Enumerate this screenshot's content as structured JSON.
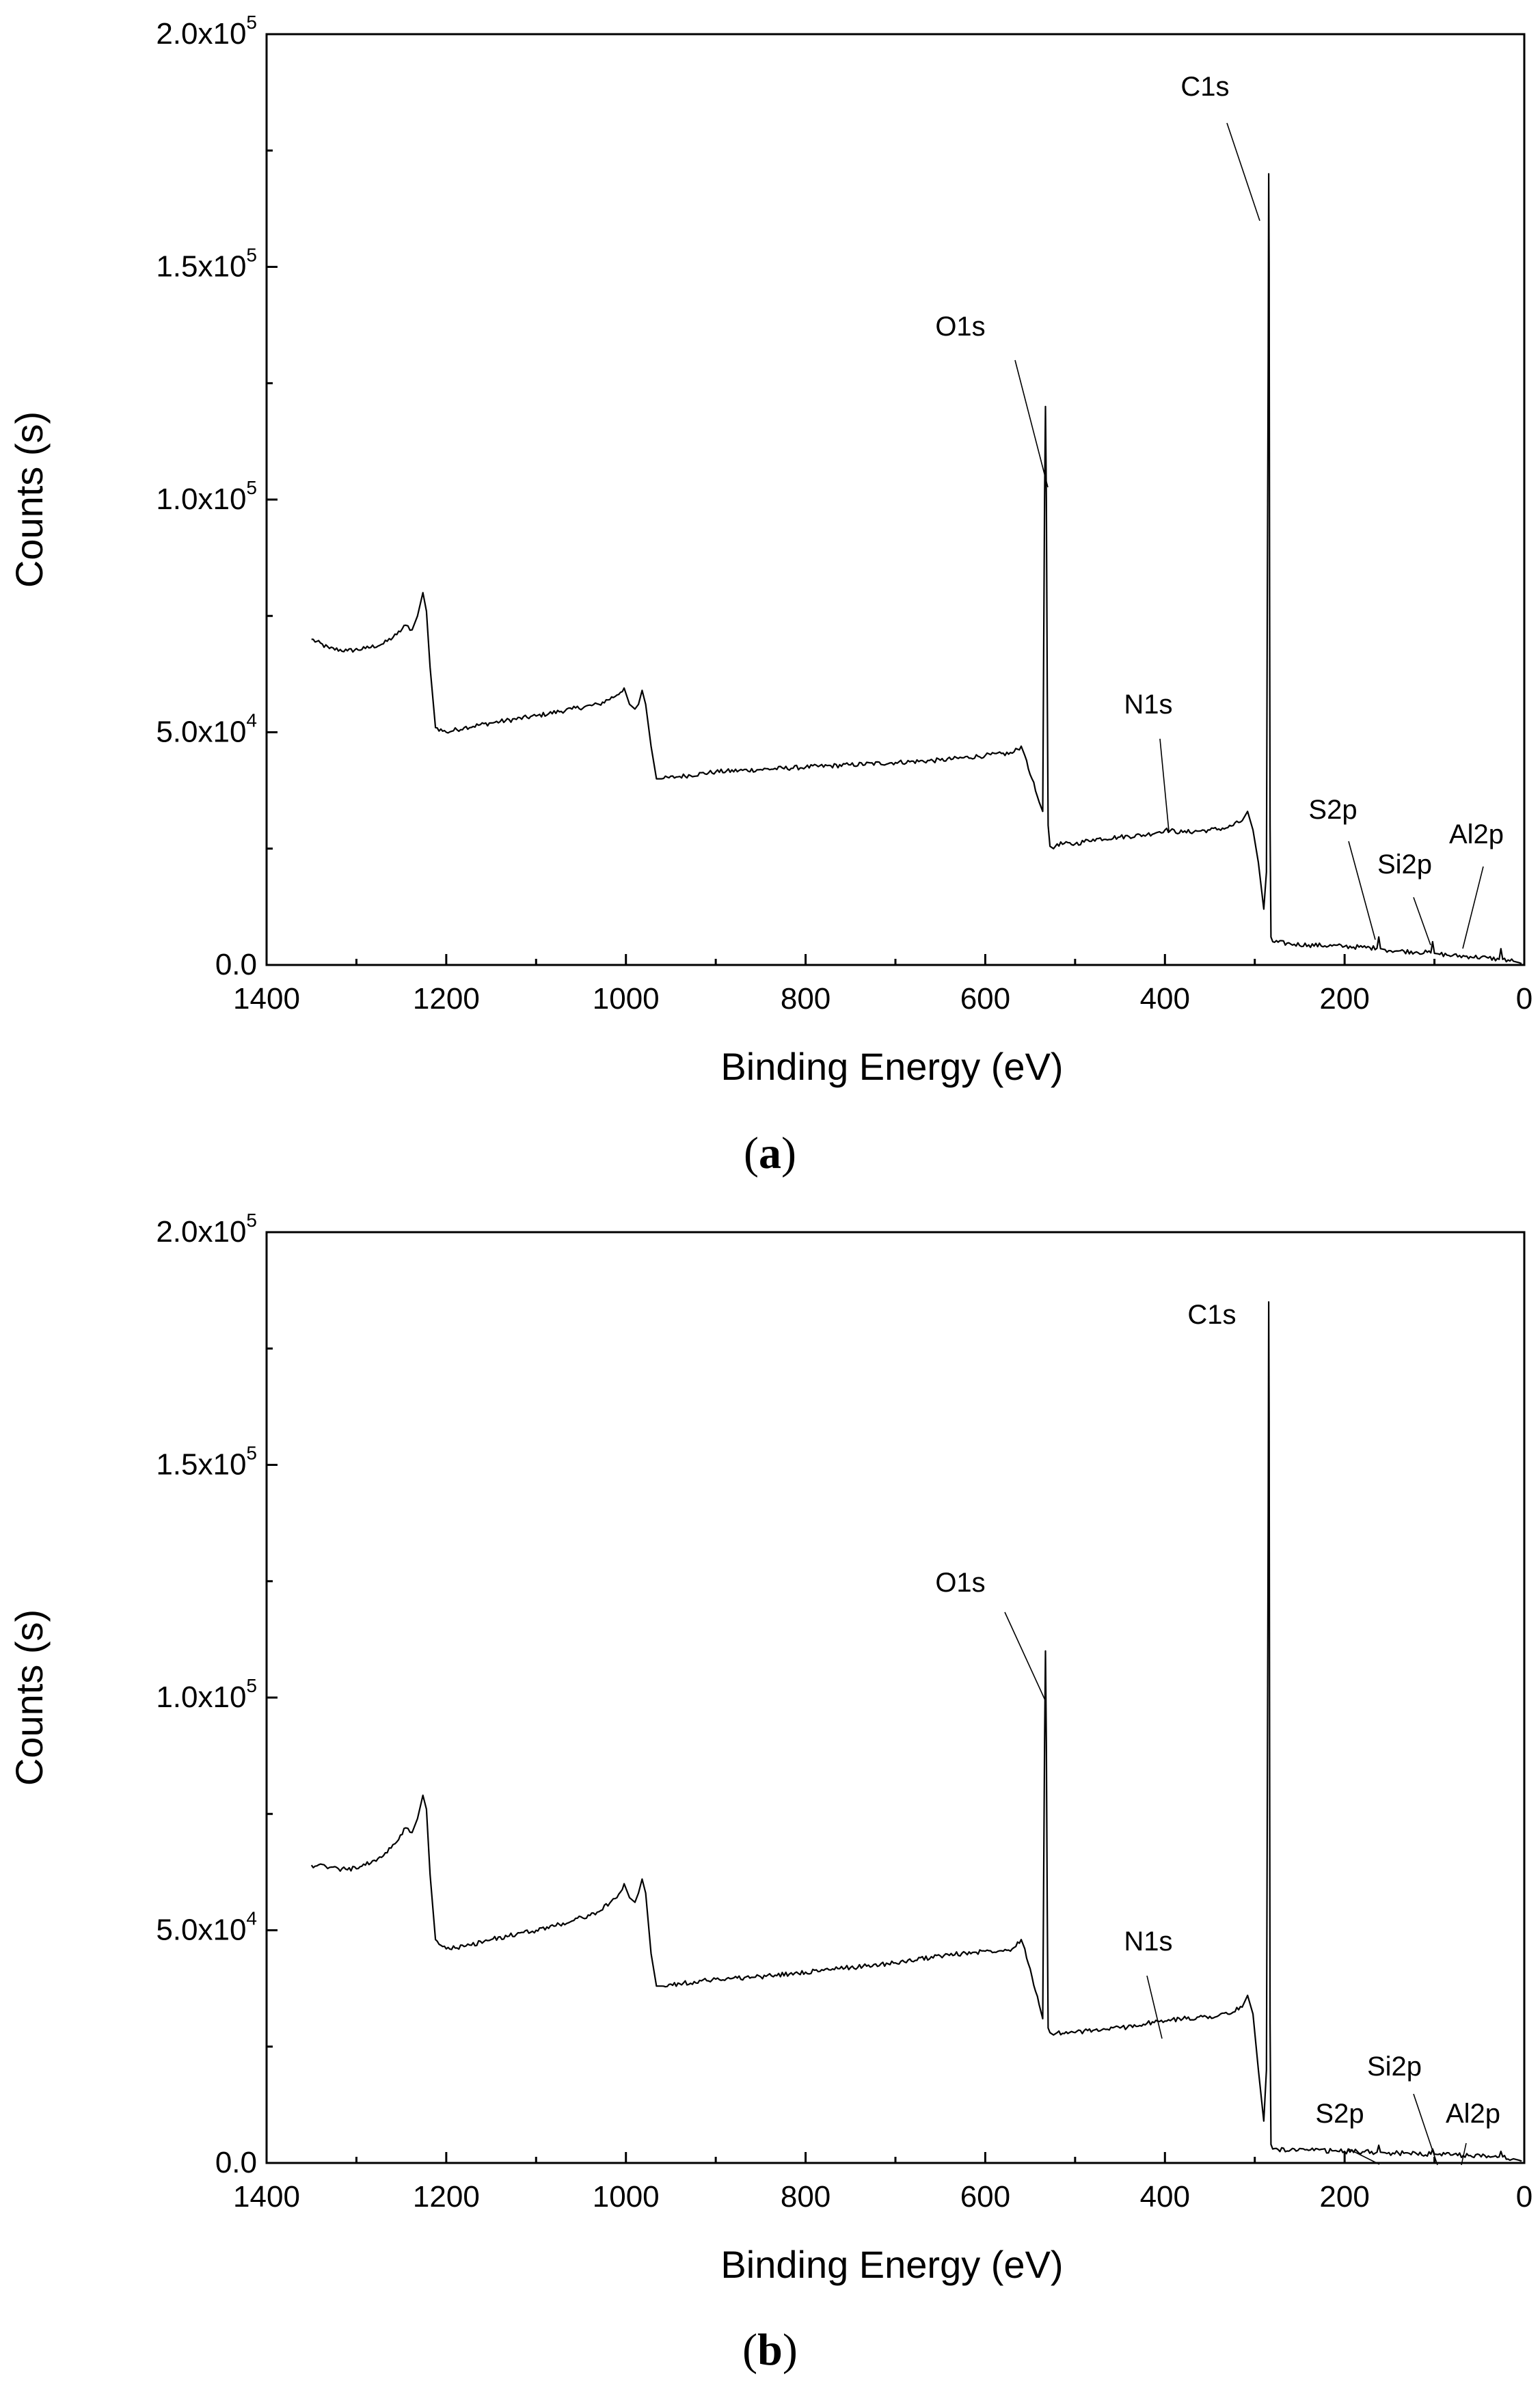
{
  "chart_data": [
    {
      "type": "line",
      "panel_label": "a",
      "xlabel": "Binding Energy (eV)",
      "ylabel": "Counts (s)",
      "xlim": [
        1400,
        0
      ],
      "ylim": [
        0,
        200000
      ],
      "x_reversed": true,
      "xticks": [
        "1400",
        "1200",
        "1000",
        "800",
        "600",
        "400",
        "200",
        "0"
      ],
      "yticks": [
        {
          "mantissa": "0.0",
          "exp": ""
        },
        {
          "mantissa": "5.0x10",
          "exp": "4"
        },
        {
          "mantissa": "1.0x10",
          "exp": "5"
        },
        {
          "mantissa": "1.5x10",
          "exp": "5"
        },
        {
          "mantissa": "2.0x10",
          "exp": "5"
        }
      ],
      "grid": false,
      "series": [
        {
          "x": [
            1350,
            1330,
            1310,
            1290,
            1270,
            1255,
            1245,
            1238,
            1232,
            1226,
            1222,
            1218,
            1212,
            1200,
            1180,
            1150,
            1100,
            1060,
            1030,
            1010,
            1002,
            996,
            990,
            986,
            982,
            978,
            972,
            966,
            960,
            940,
            900,
            850,
            800,
            750,
            700,
            650,
            600,
            570,
            560,
            556,
            548,
            540,
            536,
            534,
            533,
            532,
            531,
            530,
            528,
            524,
            520,
            500,
            480,
            450,
            420,
            400,
            380,
            350,
            330,
            314,
            308,
            302,
            296,
            290,
            287,
            286,
            285,
            284.5,
            284,
            283.5,
            283,
            282,
            280,
            260,
            240,
            200,
            180,
            164,
            162,
            160,
            155,
            140,
            120,
            104,
            102,
            100,
            96,
            80,
            60,
            40,
            28,
            26,
            24,
            12,
            6,
            3
          ],
          "y": [
            70000,
            68000,
            67500,
            68000,
            69000,
            71000,
            73000,
            72000,
            75000,
            80000,
            76000,
            64000,
            51000,
            50000,
            51000,
            52000,
            53500,
            55000,
            56000,
            58000,
            59500,
            56000,
            55000,
            56000,
            59000,
            56000,
            47000,
            40000,
            40000,
            40500,
            41500,
            42000,
            42500,
            43000,
            43500,
            44000,
            45000,
            45500,
            47000,
            45000,
            40000,
            35000,
            33000,
            100000,
            120000,
            100000,
            60000,
            30000,
            25500,
            25000,
            26000,
            26000,
            27000,
            27500,
            28000,
            29000,
            28500,
            29000,
            29500,
            31000,
            33000,
            29000,
            22000,
            12000,
            20000,
            80000,
            130000,
            170000,
            150000,
            80000,
            30000,
            6000,
            5000,
            4500,
            4300,
            4000,
            3800,
            3600,
            6000,
            3500,
            3300,
            3000,
            2800,
            2600,
            5000,
            2500,
            2400,
            2000,
            1800,
            1500,
            1200,
            3500,
            1200,
            800,
            500,
            300
          ]
        }
      ],
      "annotations": [
        "C1s",
        "O1s",
        "N1s",
        "S2p",
        "Si2p",
        "Al2p"
      ]
    },
    {
      "type": "line",
      "panel_label": "b",
      "xlabel": "Binding Energy (eV)",
      "ylabel": "Counts (s)",
      "xlim": [
        1400,
        0
      ],
      "ylim": [
        0,
        200000
      ],
      "x_reversed": true,
      "xticks": [
        "1400",
        "1200",
        "1000",
        "800",
        "600",
        "400",
        "200",
        "0"
      ],
      "yticks": [
        {
          "mantissa": "0.0",
          "exp": ""
        },
        {
          "mantissa": "5.0x10",
          "exp": "4"
        },
        {
          "mantissa": "1.0x10",
          "exp": "5"
        },
        {
          "mantissa": "1.5x10",
          "exp": "5"
        },
        {
          "mantissa": "2.0x10",
          "exp": "5"
        }
      ],
      "grid": false,
      "series": [
        {
          "x": [
            1350,
            1330,
            1310,
            1290,
            1270,
            1255,
            1245,
            1238,
            1232,
            1226,
            1222,
            1218,
            1212,
            1200,
            1180,
            1150,
            1100,
            1060,
            1030,
            1010,
            1002,
            996,
            990,
            986,
            982,
            978,
            972,
            966,
            960,
            940,
            900,
            850,
            800,
            750,
            700,
            650,
            600,
            570,
            560,
            556,
            548,
            540,
            536,
            534,
            533,
            532,
            531,
            530,
            528,
            524,
            520,
            500,
            480,
            450,
            420,
            400,
            380,
            350,
            330,
            314,
            308,
            302,
            296,
            290,
            287,
            286,
            285,
            284.5,
            284,
            283.5,
            283,
            282,
            280,
            260,
            240,
            200,
            180,
            164,
            162,
            160,
            155,
            140,
            120,
            104,
            102,
            100,
            96,
            80,
            60,
            40,
            28,
            26,
            24,
            12,
            6,
            3
          ],
          "y": [
            64000,
            63500,
            63000,
            64000,
            66000,
            69000,
            72000,
            71000,
            74000,
            79000,
            76000,
            62000,
            48000,
            46000,
            46500,
            48000,
            50000,
            52000,
            54000,
            57000,
            60000,
            57000,
            56000,
            58000,
            61000,
            58000,
            45000,
            38000,
            38000,
            38500,
            39500,
            40000,
            41000,
            42000,
            43000,
            44500,
            45500,
            46000,
            48000,
            46000,
            40000,
            34000,
            31000,
            90000,
            110000,
            90000,
            55000,
            29000,
            28000,
            27500,
            28000,
            28000,
            28500,
            29000,
            30000,
            30500,
            31000,
            31500,
            32000,
            33500,
            36000,
            32000,
            20000,
            9000,
            20000,
            80000,
            140000,
            185000,
            160000,
            90000,
            30000,
            4000,
            3000,
            2800,
            2700,
            2500,
            2400,
            2300,
            3800,
            2300,
            2200,
            2100,
            2000,
            1900,
            3000,
            1900,
            1800,
            1700,
            1600,
            1500,
            1300,
            2500,
            1300,
            900,
            600,
            400
          ]
        }
      ],
      "annotations": [
        "C1s",
        "O1s",
        "N1s",
        "Si2p",
        "S2p",
        "Al2p"
      ]
    }
  ]
}
